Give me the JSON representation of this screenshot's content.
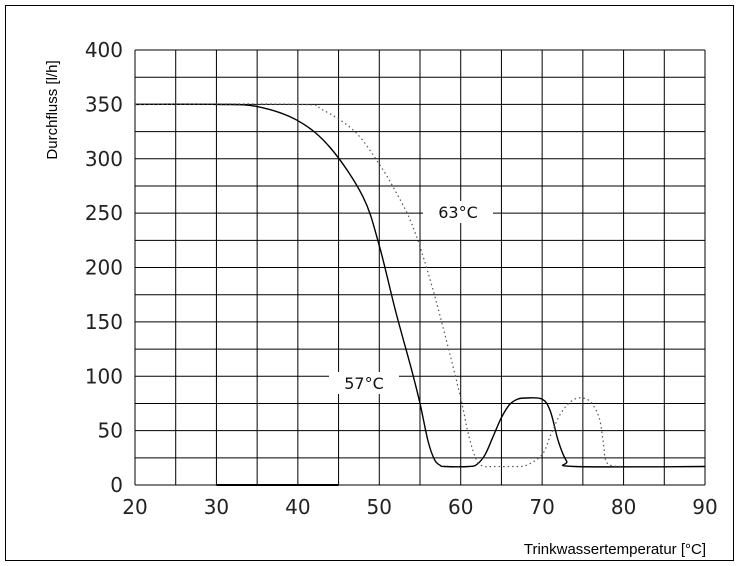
{
  "chart_data": {
    "type": "line",
    "xlabel": "Trinkwassertemperatur [°C]",
    "ylabel": "Durchfluss [l/h]",
    "xlim": [
      20,
      90
    ],
    "ylim": [
      0,
      400
    ],
    "xticks": [
      20,
      30,
      40,
      50,
      60,
      70,
      80,
      90
    ],
    "yticks": [
      0,
      50,
      100,
      150,
      200,
      250,
      300,
      350,
      400
    ],
    "grid": true,
    "series": [
      {
        "name": "57°C",
        "style": "solid",
        "color": "#000000",
        "x": [
          20,
          30,
          35,
          40,
          44,
          48,
          50,
          52,
          54,
          55,
          56,
          56.8,
          57.5,
          58,
          61,
          62,
          63,
          64,
          65,
          66,
          67,
          68,
          70,
          71,
          72,
          73,
          74,
          90
        ],
        "y": [
          350,
          350,
          348,
          335,
          310,
          265,
          220,
          160,
          105,
          75,
          40,
          23,
          18,
          17,
          17,
          19,
          28,
          45,
          62,
          74,
          79,
          80,
          79,
          68,
          40,
          22,
          17,
          17
        ]
      },
      {
        "name": "63°C",
        "style": "dotted",
        "color": "#555555",
        "x": [
          20,
          40,
          43,
          47,
          50,
          52,
          54,
          56,
          58,
          60,
          61,
          62,
          63,
          64,
          66,
          68,
          70,
          71,
          72,
          73,
          74,
          75,
          76,
          77,
          77.5,
          78,
          80
        ],
        "y": [
          350,
          350,
          345,
          325,
          295,
          270,
          240,
          195,
          140,
          80,
          45,
          22,
          17,
          17,
          17,
          18,
          28,
          45,
          62,
          73,
          79,
          80,
          76,
          62,
          40,
          20,
          17
        ]
      }
    ],
    "annotations": [
      "63°C",
      "57°C"
    ]
  }
}
